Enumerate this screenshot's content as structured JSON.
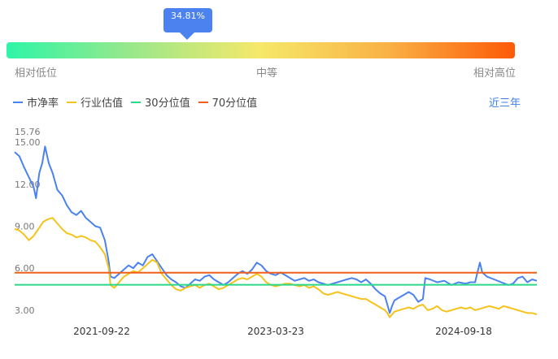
{
  "gauge": {
    "percent_label": "34.81%",
    "percent": 34.81,
    "low_label": "相对低位",
    "mid_label": "中等",
    "high_label": "相对高位"
  },
  "legend": {
    "items": [
      {
        "label": "市净率",
        "color": "#4b82f0"
      },
      {
        "label": "行业估值",
        "color": "#f6c31c"
      },
      {
        "label": "30分位值",
        "color": "#2bd88a"
      },
      {
        "label": "70分位值",
        "color": "#f0601c"
      }
    ]
  },
  "range_button": "近三年",
  "chart_data": {
    "type": "line",
    "title": "",
    "xlabel": "",
    "ylabel": "",
    "x_ticks": [
      "2021-09-22",
      "2023-03-23",
      "2024-09-18"
    ],
    "y_ticks": [
      "3.00",
      "6.00",
      "9.00",
      "12.00",
      "15.00",
      "15.76"
    ],
    "ylim": [
      2.3,
      15.76
    ],
    "x_domain": [
      0,
      1100
    ],
    "series": [
      {
        "name": "市净率",
        "color": "#4b82f0",
        "points": [
          [
            0,
            14.3
          ],
          [
            10,
            14.0
          ],
          [
            20,
            13.2
          ],
          [
            30,
            12.5
          ],
          [
            40,
            11.8
          ],
          [
            45,
            11.0
          ],
          [
            52,
            12.8
          ],
          [
            58,
            13.5
          ],
          [
            64,
            14.7
          ],
          [
            72,
            13.5
          ],
          [
            80,
            12.8
          ],
          [
            90,
            11.6
          ],
          [
            100,
            11.2
          ],
          [
            110,
            10.5
          ],
          [
            120,
            10.0
          ],
          [
            130,
            9.8
          ],
          [
            140,
            10.1
          ],
          [
            150,
            9.6
          ],
          [
            160,
            9.3
          ],
          [
            170,
            9.0
          ],
          [
            180,
            8.9
          ],
          [
            190,
            8.0
          ],
          [
            198,
            6.5
          ],
          [
            202,
            5.4
          ],
          [
            210,
            5.3
          ],
          [
            220,
            5.6
          ],
          [
            230,
            5.9
          ],
          [
            240,
            6.2
          ],
          [
            250,
            6.0
          ],
          [
            260,
            6.4
          ],
          [
            270,
            6.2
          ],
          [
            280,
            6.8
          ],
          [
            290,
            7.0
          ],
          [
            300,
            6.5
          ],
          [
            310,
            6.0
          ],
          [
            320,
            5.5
          ],
          [
            330,
            5.2
          ],
          [
            340,
            5.0
          ],
          [
            350,
            4.7
          ],
          [
            360,
            4.6
          ],
          [
            370,
            4.9
          ],
          [
            380,
            5.2
          ],
          [
            390,
            5.1
          ],
          [
            400,
            5.4
          ],
          [
            410,
            5.5
          ],
          [
            420,
            5.2
          ],
          [
            430,
            5.0
          ],
          [
            440,
            4.8
          ],
          [
            450,
            5.0
          ],
          [
            460,
            5.3
          ],
          [
            470,
            5.6
          ],
          [
            480,
            5.8
          ],
          [
            490,
            5.6
          ],
          [
            500,
            5.9
          ],
          [
            510,
            6.4
          ],
          [
            520,
            6.2
          ],
          [
            530,
            5.8
          ],
          [
            540,
            5.6
          ],
          [
            550,
            5.5
          ],
          [
            560,
            5.7
          ],
          [
            570,
            5.5
          ],
          [
            580,
            5.3
          ],
          [
            590,
            5.1
          ],
          [
            600,
            5.2
          ],
          [
            610,
            5.3
          ],
          [
            620,
            5.1
          ],
          [
            630,
            5.2
          ],
          [
            640,
            5.0
          ],
          [
            650,
            4.9
          ],
          [
            660,
            4.8
          ],
          [
            670,
            4.9
          ],
          [
            680,
            5.0
          ],
          [
            690,
            5.1
          ],
          [
            700,
            5.2
          ],
          [
            710,
            5.3
          ],
          [
            720,
            5.2
          ],
          [
            730,
            5.0
          ],
          [
            740,
            5.2
          ],
          [
            750,
            4.9
          ],
          [
            760,
            4.5
          ],
          [
            770,
            4.2
          ],
          [
            780,
            4.0
          ],
          [
            785,
            3.4
          ],
          [
            790,
            2.8
          ],
          [
            795,
            3.3
          ],
          [
            800,
            3.7
          ],
          [
            810,
            3.9
          ],
          [
            820,
            4.1
          ],
          [
            830,
            4.3
          ],
          [
            840,
            4.1
          ],
          [
            850,
            3.6
          ],
          [
            860,
            3.8
          ],
          [
            865,
            5.3
          ],
          [
            875,
            5.2
          ],
          [
            890,
            5.0
          ],
          [
            905,
            5.1
          ],
          [
            920,
            4.8
          ],
          [
            935,
            5.0
          ],
          [
            950,
            4.9
          ],
          [
            960,
            5.0
          ],
          [
            970,
            5.0
          ],
          [
            975,
            5.7
          ],
          [
            980,
            6.4
          ],
          [
            985,
            5.7
          ],
          [
            995,
            5.4
          ],
          [
            1010,
            5.2
          ],
          [
            1025,
            5.0
          ],
          [
            1040,
            4.8
          ],
          [
            1050,
            4.9
          ],
          [
            1060,
            5.3
          ],
          [
            1070,
            5.4
          ],
          [
            1080,
            5.0
          ],
          [
            1090,
            5.2
          ],
          [
            1100,
            5.1
          ]
        ]
      },
      {
        "name": "行业估值",
        "color": "#f6c31c",
        "points": [
          [
            0,
            8.8
          ],
          [
            10,
            8.7
          ],
          [
            20,
            8.4
          ],
          [
            30,
            8.0
          ],
          [
            40,
            8.3
          ],
          [
            50,
            8.8
          ],
          [
            60,
            9.3
          ],
          [
            70,
            9.5
          ],
          [
            80,
            9.6
          ],
          [
            90,
            9.2
          ],
          [
            100,
            8.8
          ],
          [
            110,
            8.5
          ],
          [
            120,
            8.4
          ],
          [
            130,
            8.2
          ],
          [
            140,
            8.3
          ],
          [
            150,
            8.2
          ],
          [
            160,
            8.0
          ],
          [
            170,
            7.9
          ],
          [
            180,
            7.5
          ],
          [
            190,
            7.0
          ],
          [
            198,
            6.0
          ],
          [
            202,
            4.8
          ],
          [
            210,
            4.6
          ],
          [
            220,
            5.0
          ],
          [
            230,
            5.4
          ],
          [
            240,
            5.6
          ],
          [
            250,
            5.8
          ],
          [
            260,
            5.7
          ],
          [
            270,
            6.0
          ],
          [
            280,
            6.3
          ],
          [
            290,
            6.6
          ],
          [
            300,
            6.4
          ],
          [
            310,
            5.6
          ],
          [
            320,
            5.2
          ],
          [
            330,
            4.8
          ],
          [
            340,
            4.5
          ],
          [
            350,
            4.4
          ],
          [
            360,
            4.6
          ],
          [
            370,
            4.7
          ],
          [
            380,
            4.8
          ],
          [
            390,
            4.6
          ],
          [
            400,
            4.8
          ],
          [
            410,
            4.9
          ],
          [
            420,
            4.7
          ],
          [
            430,
            4.5
          ],
          [
            440,
            4.6
          ],
          [
            450,
            4.8
          ],
          [
            460,
            5.0
          ],
          [
            470,
            5.2
          ],
          [
            480,
            5.3
          ],
          [
            490,
            5.2
          ],
          [
            500,
            5.4
          ],
          [
            510,
            5.6
          ],
          [
            520,
            5.4
          ],
          [
            530,
            5.0
          ],
          [
            540,
            4.8
          ],
          [
            550,
            4.7
          ],
          [
            560,
            4.8
          ],
          [
            570,
            4.9
          ],
          [
            580,
            4.9
          ],
          [
            590,
            4.8
          ],
          [
            600,
            4.7
          ],
          [
            610,
            4.8
          ],
          [
            620,
            4.6
          ],
          [
            630,
            4.7
          ],
          [
            640,
            4.5
          ],
          [
            650,
            4.2
          ],
          [
            660,
            4.1
          ],
          [
            670,
            4.2
          ],
          [
            680,
            4.3
          ],
          [
            690,
            4.2
          ],
          [
            700,
            4.1
          ],
          [
            710,
            4.0
          ],
          [
            720,
            3.9
          ],
          [
            730,
            3.8
          ],
          [
            740,
            3.8
          ],
          [
            750,
            3.6
          ],
          [
            760,
            3.4
          ],
          [
            770,
            3.2
          ],
          [
            780,
            3.0
          ],
          [
            785,
            2.8
          ],
          [
            790,
            2.5
          ],
          [
            800,
            2.9
          ],
          [
            810,
            3.0
          ],
          [
            820,
            3.1
          ],
          [
            830,
            3.2
          ],
          [
            840,
            3.1
          ],
          [
            850,
            3.3
          ],
          [
            860,
            3.4
          ],
          [
            870,
            3.0
          ],
          [
            880,
            3.1
          ],
          [
            890,
            3.3
          ],
          [
            900,
            3.0
          ],
          [
            910,
            2.9
          ],
          [
            920,
            3.0
          ],
          [
            930,
            3.1
          ],
          [
            940,
            3.2
          ],
          [
            950,
            3.1
          ],
          [
            960,
            3.2
          ],
          [
            970,
            3.0
          ],
          [
            980,
            3.1
          ],
          [
            990,
            3.2
          ],
          [
            1000,
            3.3
          ],
          [
            1010,
            3.2
          ],
          [
            1020,
            3.1
          ],
          [
            1030,
            3.3
          ],
          [
            1040,
            3.2
          ],
          [
            1050,
            3.1
          ],
          [
            1060,
            3.0
          ],
          [
            1070,
            2.9
          ],
          [
            1080,
            2.8
          ],
          [
            1090,
            2.8
          ],
          [
            1100,
            2.7
          ]
        ]
      },
      {
        "name": "30分位值",
        "color": "#2bd88a",
        "constant": 4.82
      },
      {
        "name": "70分位值",
        "color": "#f0601c",
        "constant": 5.68
      }
    ]
  }
}
